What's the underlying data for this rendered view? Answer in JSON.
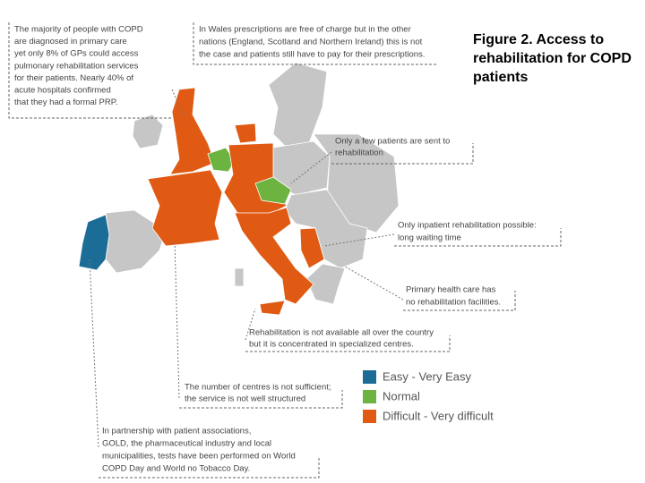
{
  "title": "Figure 2. Access to rehabilitation for COPD patients",
  "annotations": [
    {
      "lines": [
        "The majority of people with COPD",
        "are diagnosed in primary care",
        "yet only 8% of GPs could access",
        "pulmonary rehabilitation services",
        "for their patients. Nearly 40% of",
        "acute hospitals confirmed",
        "that they had a formal PRP."
      ]
    },
    {
      "lines": [
        "In Wales prescriptions are free of charge but in the other",
        "nations (England, Scotland and Northern Ireland) this is not",
        "the case and patients still have to pay for their prescriptions."
      ]
    },
    {
      "lines": [
        "Only a few patients are sent to",
        "rehabilitation"
      ]
    },
    {
      "lines": [
        "Only inpatient rehabilitation possible:",
        "long waiting time"
      ]
    },
    {
      "lines": [
        "Primary health care has",
        "no rehabilitation facilities."
      ]
    },
    {
      "lines": [
        "Rehabilitation is not available all over the country",
        "but it is concentrated in specialized centres."
      ]
    },
    {
      "lines": [
        "The number of centres is not sufficient;",
        "the service is not well structured"
      ]
    },
    {
      "lines": [
        "In partnership with patient associations,",
        "GOLD, the pharmaceutical industry and local",
        "municipalities, tests have been performed on World",
        "COPD Day and World no Tobacco Day."
      ]
    }
  ],
  "legend": [
    {
      "label": "Easy - Very Easy",
      "color": "#1b6d98"
    },
    {
      "label": "Normal",
      "color": "#6db33f"
    },
    {
      "label": "Difficult - Very difficult",
      "color": "#e05a14"
    }
  ]
}
